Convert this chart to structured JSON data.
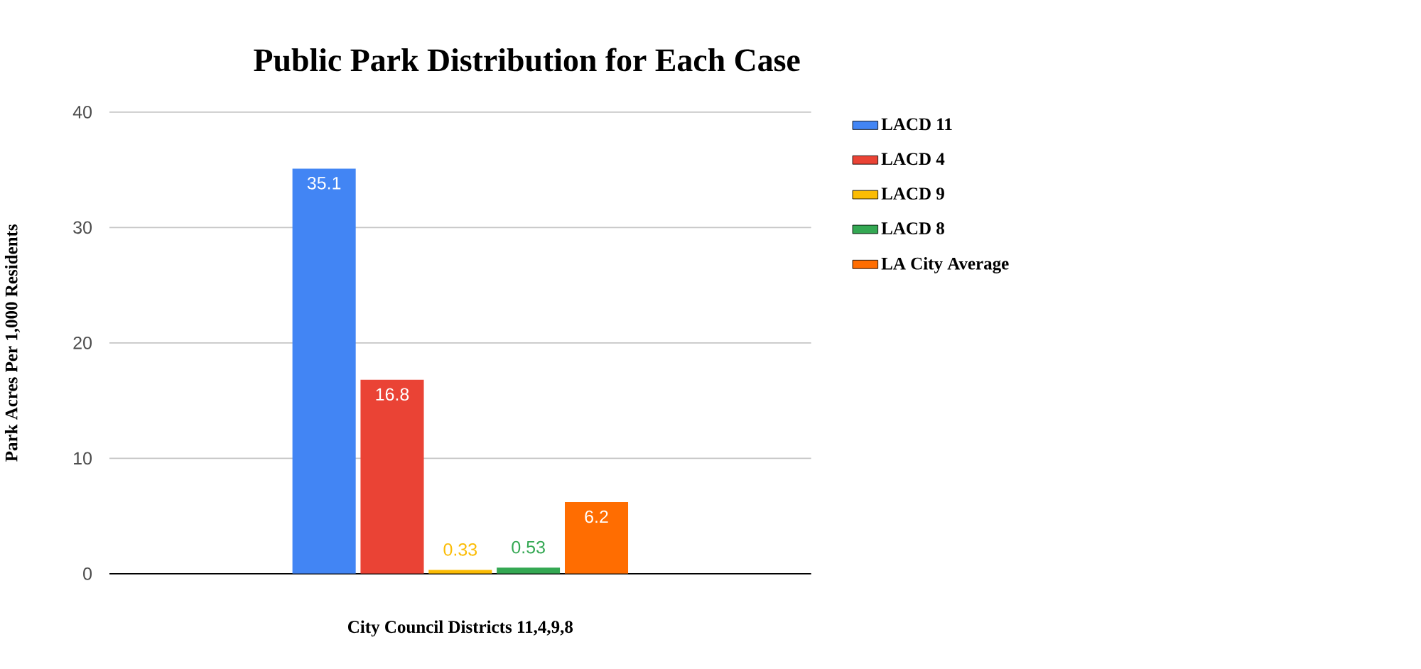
{
  "chart_data": {
    "type": "bar",
    "title": "Public Park Distribution for Each Case",
    "xlabel": "City Council Districts 11,4,9,8",
    "ylabel": "Park Acres Per 1,000 Residents",
    "categories": [
      null
    ],
    "series": [
      {
        "name": "LACD 11",
        "color": "#4285f4",
        "values": [
          35.1
        ]
      },
      {
        "name": "LACD 4",
        "color": "#ea4335",
        "values": [
          16.8
        ]
      },
      {
        "name": "LACD 9",
        "color": "#fbbc04",
        "values": [
          0.33
        ]
      },
      {
        "name": "LACD 8",
        "color": "#34a853",
        "values": [
          0.53
        ]
      },
      {
        "name": "LA City Average",
        "color": "#ff6d01",
        "values": [
          6.2
        ]
      }
    ],
    "ylim": [
      0,
      40
    ],
    "yticks": [
      0,
      10,
      20,
      30,
      40
    ],
    "grid": "y",
    "legend": "top right",
    "data_labels": true
  }
}
